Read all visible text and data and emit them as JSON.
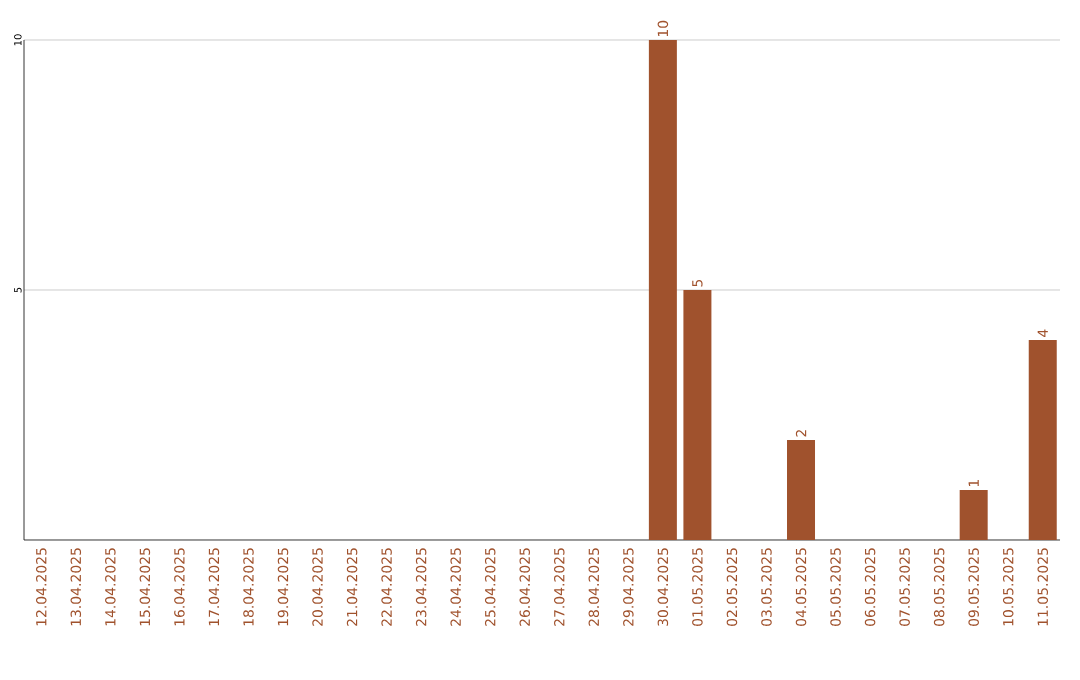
{
  "chart_data": {
    "type": "bar",
    "categories": [
      "12.04.2025",
      "13.04.2025",
      "14.04.2025",
      "15.04.2025",
      "16.04.2025",
      "17.04.2025",
      "18.04.2025",
      "19.04.2025",
      "20.04.2025",
      "21.04.2025",
      "22.04.2025",
      "23.04.2025",
      "24.04.2025",
      "25.04.2025",
      "26.04.2025",
      "27.04.2025",
      "28.04.2025",
      "29.04.2025",
      "30.04.2025",
      "01.05.2025",
      "02.05.2025",
      "03.05.2025",
      "04.05.2025",
      "05.05.2025",
      "06.05.2025",
      "07.05.2025",
      "08.05.2025",
      "09.05.2025",
      "10.05.2025",
      "11.05.2025"
    ],
    "values": [
      0,
      0,
      0,
      0,
      0,
      0,
      0,
      0,
      0,
      0,
      0,
      0,
      0,
      0,
      0,
      0,
      0,
      0,
      10,
      5,
      0,
      0,
      2,
      0,
      0,
      0,
      0,
      1,
      0,
      4
    ],
    "value_labels": [
      null,
      null,
      null,
      null,
      null,
      null,
      null,
      null,
      null,
      null,
      null,
      null,
      null,
      null,
      null,
      null,
      null,
      null,
      "10",
      "5",
      null,
      null,
      "2",
      null,
      null,
      null,
      null,
      "1",
      null,
      "4"
    ],
    "color": "#a0522d",
    "ylim": [
      0,
      10
    ],
    "yticks": [
      5,
      10
    ],
    "grid": "y"
  }
}
